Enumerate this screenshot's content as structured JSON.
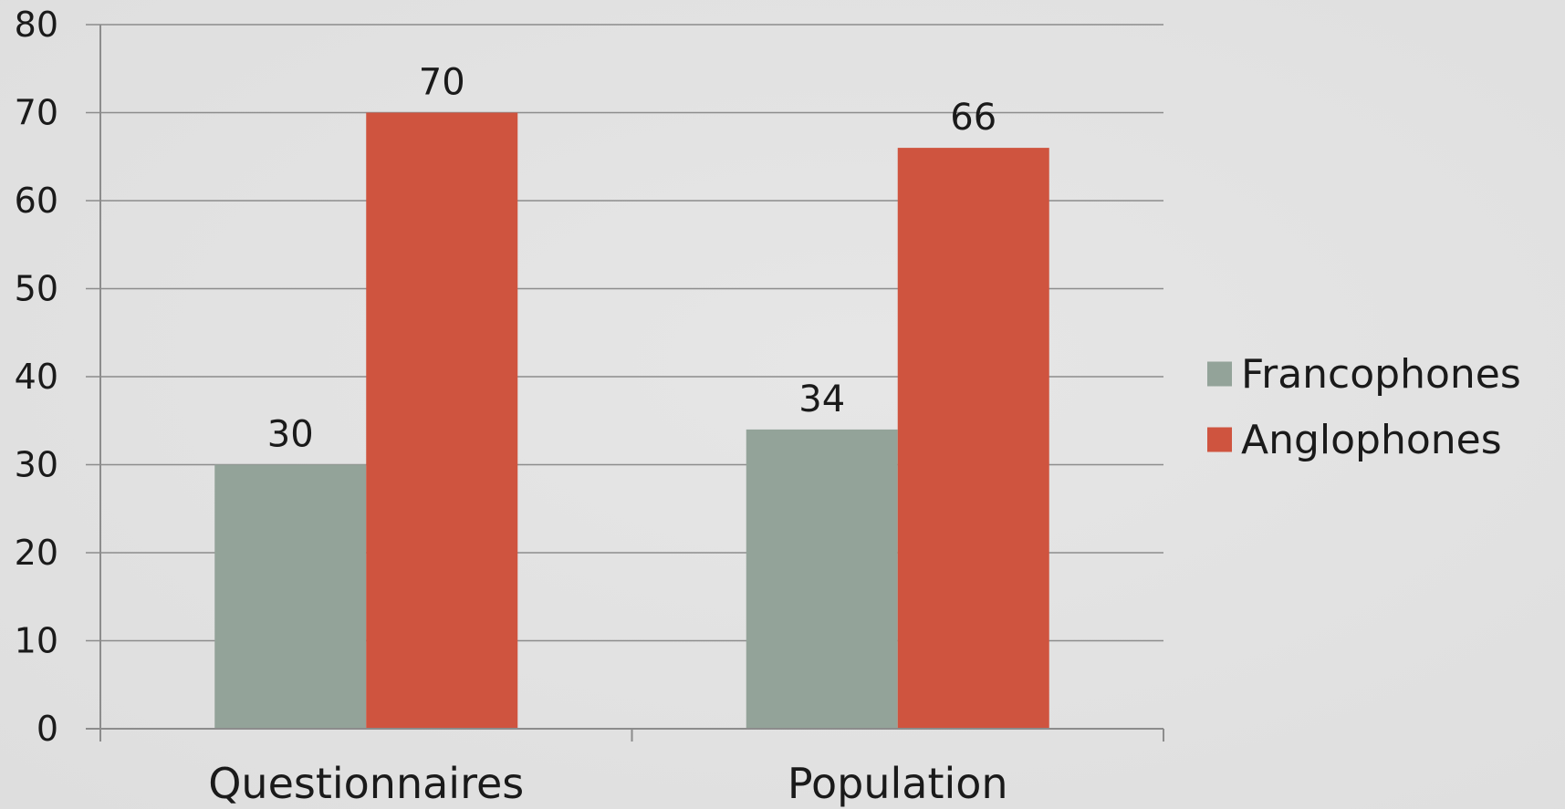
{
  "chart_data": {
    "type": "bar",
    "categories": [
      "Questionnaires",
      "Population"
    ],
    "series": [
      {
        "name": "Francophones",
        "values": [
          30,
          34
        ],
        "color": "#93a399"
      },
      {
        "name": "Anglophones",
        "values": [
          70,
          66
        ],
        "color": "#cf543f"
      }
    ],
    "title": "",
    "xlabel": "",
    "ylabel": "",
    "ylim": [
      0,
      80
    ],
    "yticks": [
      0,
      10,
      20,
      30,
      40,
      50,
      60,
      70,
      80
    ],
    "grid": true,
    "data_labels": true,
    "legend_position": "right"
  }
}
